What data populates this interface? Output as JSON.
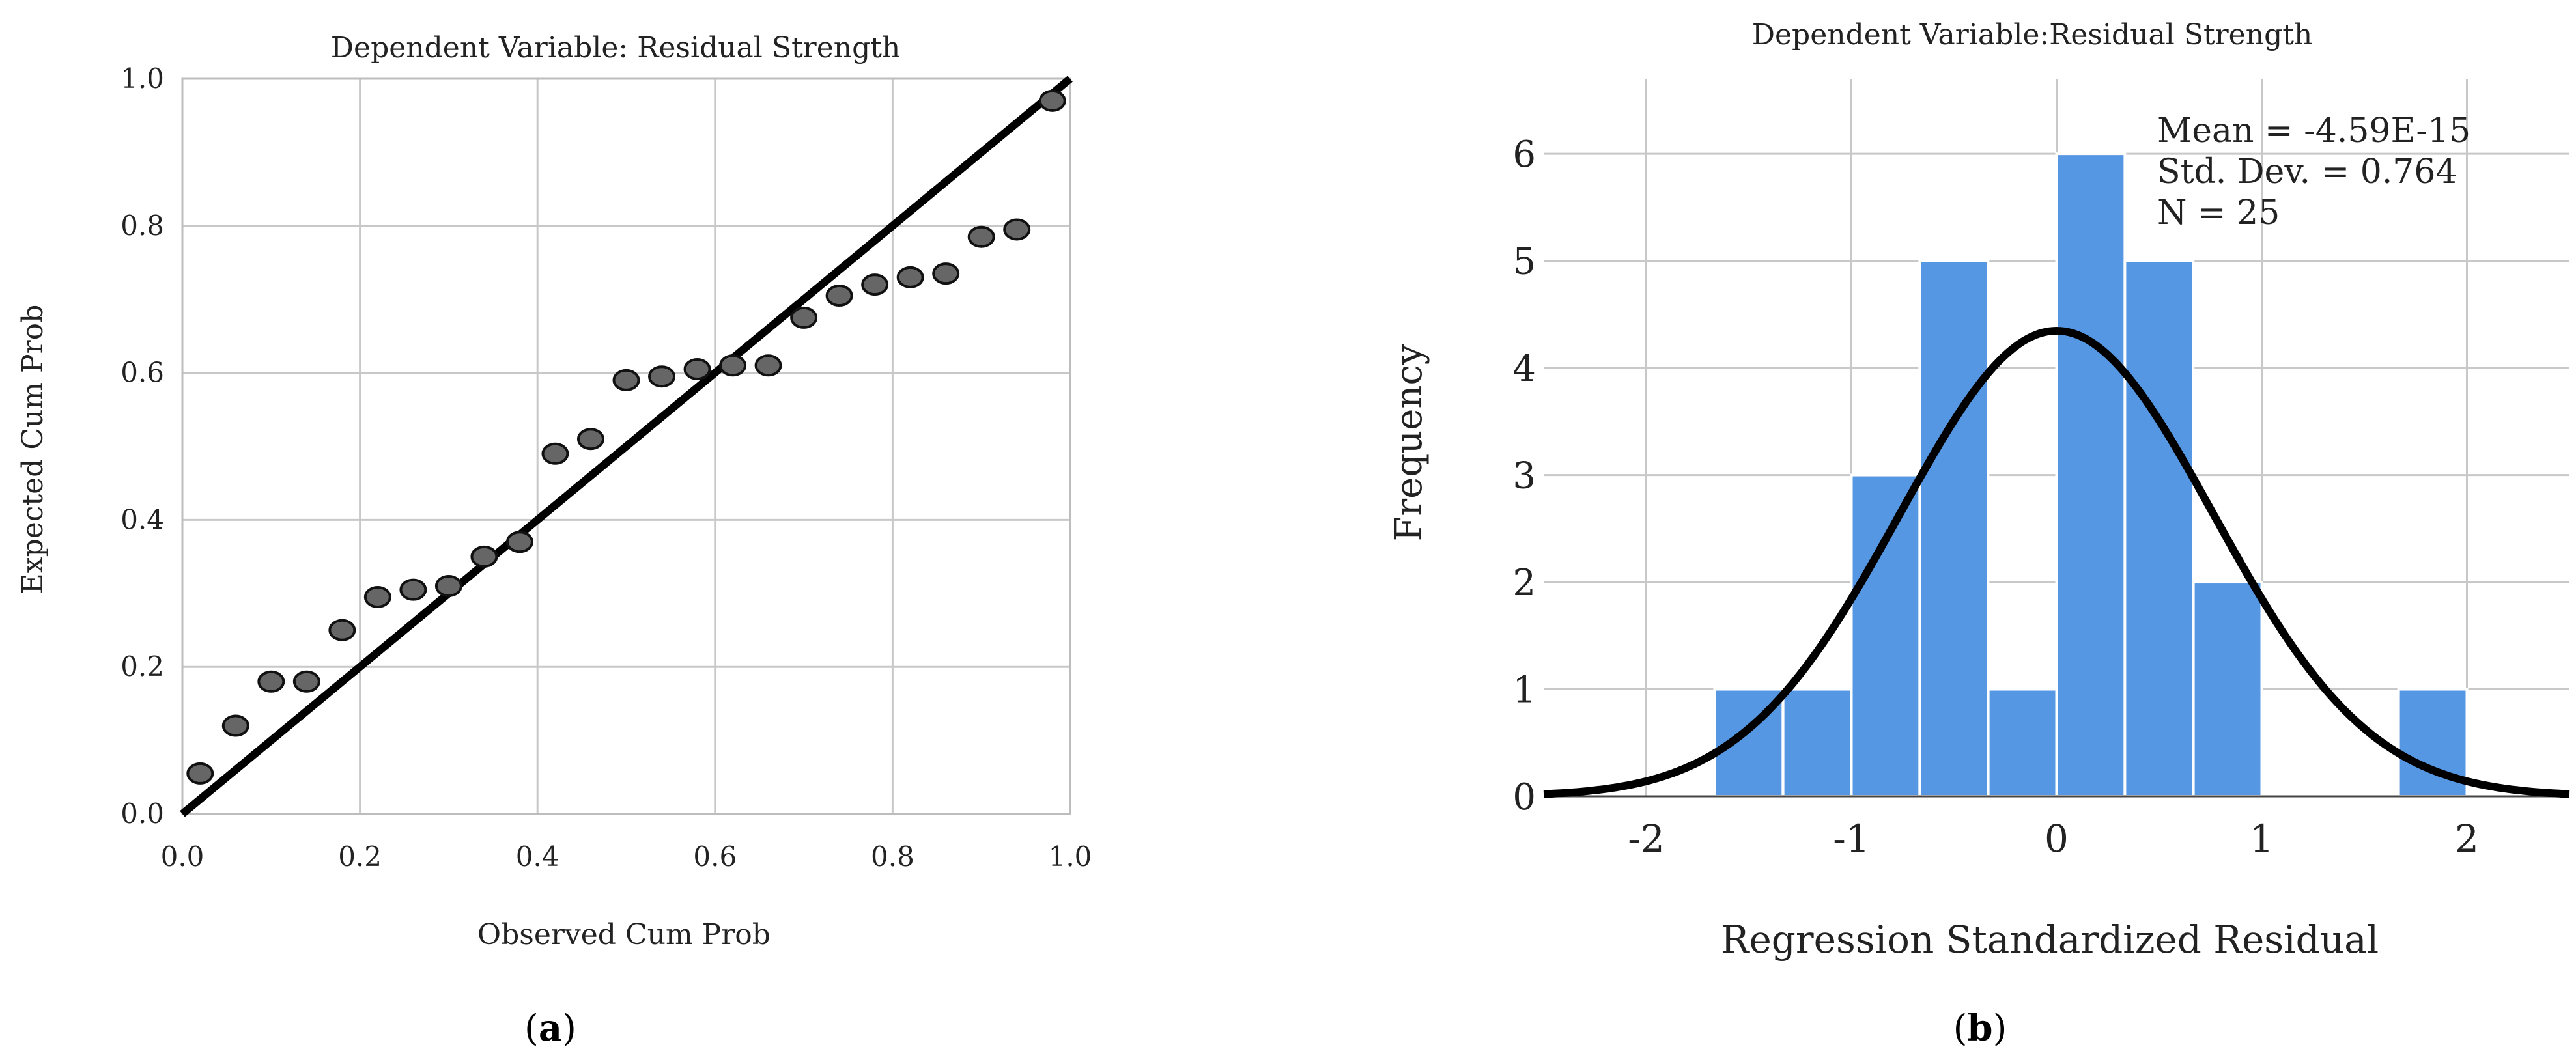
{
  "chart_data": [
    {
      "type": "scatter",
      "panel_label": "a",
      "title": "Dependent Variable: Residual Strength",
      "xlabel": "Observed Cum Prob",
      "ylabel": "Expected Cum Prob",
      "xlim": [
        0,
        1
      ],
      "ylim": [
        0,
        1
      ],
      "ticks": [
        "0.0",
        "0.2",
        "0.4",
        "0.6",
        "0.8",
        "1.0"
      ],
      "grid": true,
      "reference_line": [
        [
          0,
          0
        ],
        [
          1,
          1
        ]
      ],
      "points": [
        {
          "x": 0.02,
          "y": 0.055
        },
        {
          "x": 0.06,
          "y": 0.12
        },
        {
          "x": 0.1,
          "y": 0.18
        },
        {
          "x": 0.14,
          "y": 0.18
        },
        {
          "x": 0.18,
          "y": 0.25
        },
        {
          "x": 0.22,
          "y": 0.295
        },
        {
          "x": 0.26,
          "y": 0.305
        },
        {
          "x": 0.3,
          "y": 0.31
        },
        {
          "x": 0.34,
          "y": 0.35
        },
        {
          "x": 0.38,
          "y": 0.37
        },
        {
          "x": 0.42,
          "y": 0.49
        },
        {
          "x": 0.46,
          "y": 0.51
        },
        {
          "x": 0.5,
          "y": 0.59
        },
        {
          "x": 0.54,
          "y": 0.595
        },
        {
          "x": 0.58,
          "y": 0.605
        },
        {
          "x": 0.62,
          "y": 0.61
        },
        {
          "x": 0.66,
          "y": 0.61
        },
        {
          "x": 0.7,
          "y": 0.675
        },
        {
          "x": 0.74,
          "y": 0.705
        },
        {
          "x": 0.78,
          "y": 0.72
        },
        {
          "x": 0.82,
          "y": 0.73
        },
        {
          "x": 0.86,
          "y": 0.735
        },
        {
          "x": 0.9,
          "y": 0.785
        },
        {
          "x": 0.94,
          "y": 0.795
        },
        {
          "x": 0.98,
          "y": 0.97
        }
      ],
      "point_color": "#666666",
      "line_color": "#000000"
    },
    {
      "type": "bar",
      "panel_label": "b",
      "title": "Dependent Variable:Residual Strength",
      "xlabel": "Regression Standardized Residual",
      "ylabel": "Frequency",
      "xlim": [
        -2.5,
        2.5
      ],
      "ylim": [
        0,
        6.7
      ],
      "xticks": [
        {
          "value": -2,
          "label": "-2"
        },
        {
          "value": -1,
          "label": "-1"
        },
        {
          "value": 0,
          "label": "0"
        },
        {
          "value": 1,
          "label": "1"
        },
        {
          "value": 2,
          "label": "2"
        }
      ],
      "yticks": [
        "0",
        "1",
        "2",
        "3",
        "4",
        "5",
        "6"
      ],
      "grid": true,
      "bin_width": 0.333,
      "bins": [
        {
          "start": -1.667,
          "value": 1
        },
        {
          "start": -1.333,
          "value": 1
        },
        {
          "start": -1.0,
          "value": 3
        },
        {
          "start": -0.667,
          "value": 5
        },
        {
          "start": -0.333,
          "value": 1
        },
        {
          "start": 0.0,
          "value": 6
        },
        {
          "start": 0.333,
          "value": 5
        },
        {
          "start": 0.667,
          "value": 2
        },
        {
          "start": 1.667,
          "value": 1
        }
      ],
      "bar_color": "#5597e3",
      "normal_curve": {
        "mean": 0,
        "sd": 0.764,
        "n": 25
      },
      "stats": [
        "Mean = -4.59E-15",
        "Std. Dev. = 0.764",
        "N = 25"
      ]
    }
  ]
}
